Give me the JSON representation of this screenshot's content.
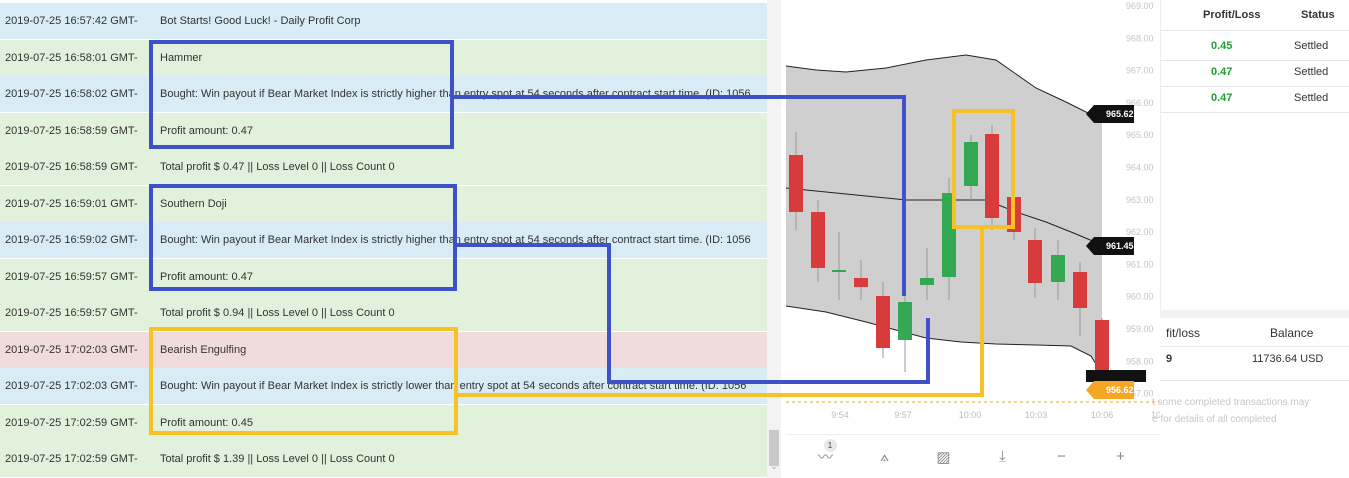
{
  "log": {
    "rows": [
      {
        "ts": "2019-07-25 16:57:42 GMT-",
        "msg": "Bot Starts! Good Luck! - Daily Profit Corp",
        "type": "info"
      },
      {
        "ts": "2019-07-25 16:58:01 GMT-",
        "msg": "Hammer",
        "type": "success"
      },
      {
        "ts": "2019-07-25 16:58:02 GMT-",
        "msg": "Bought: Win payout if Bear Market Index is strictly higher than entry spot at 54 seconds after contract start time. (ID: 1056",
        "type": "info"
      },
      {
        "ts": "2019-07-25 16:58:59 GMT-",
        "msg": "Profit amount: 0.47",
        "type": "success"
      },
      {
        "ts": "2019-07-25 16:58:59 GMT-",
        "msg": "Total profit $ 0.47 || Loss Level 0 || Loss Count 0",
        "type": "success"
      },
      {
        "ts": "2019-07-25 16:59:01 GMT-",
        "msg": "Southern Doji",
        "type": "success"
      },
      {
        "ts": "2019-07-25 16:59:02 GMT-",
        "msg": "Bought: Win payout if Bear Market Index is strictly higher than entry spot at 54 seconds after contract start time. (ID: 1056",
        "type": "info"
      },
      {
        "ts": "2019-07-25 16:59:57 GMT-",
        "msg": "Profit amount: 0.47",
        "type": "success"
      },
      {
        "ts": "2019-07-25 16:59:57 GMT-",
        "msg": "Total profit $ 0.94 || Loss Level 0 || Loss Count 0",
        "type": "success"
      },
      {
        "ts": "2019-07-25 17:02:03 GMT-",
        "msg": "Bearish Engulfing",
        "type": "error"
      },
      {
        "ts": "2019-07-25 17:02:03 GMT-",
        "msg": "Bought: Win payout if Bear Market Index is strictly lower than entry spot at 54 seconds after contract start time. (ID: 1056",
        "type": "info"
      },
      {
        "ts": "2019-07-25 17:02:59 GMT-",
        "msg": "Profit amount: 0.45",
        "type": "success"
      },
      {
        "ts": "2019-07-25 17:02:59 GMT-",
        "msg": "Total profit $ 1.39 || Loss Level 0 || Loss Count 0",
        "type": "success"
      }
    ]
  },
  "chart": {
    "price_ticks": [
      "969.00",
      "968.00",
      "967.00",
      "966.00",
      "965.00",
      "964.00",
      "963.00",
      "962.00",
      "961.00",
      "960.00",
      "959.00",
      "958.00",
      "957.00"
    ],
    "time_ticks": [
      "9:54",
      "9:57",
      "10:00",
      "10:03",
      "10:06"
    ],
    "badges": {
      "upper": "965.62",
      "middle": "961.45",
      "current": "956.62"
    },
    "partial_tick": "10",
    "colors": {
      "up": "#34a853",
      "down": "#d83b3b",
      "band": "#cfcfcf",
      "current": "#f5a623",
      "blue_annot": "#3f51c6",
      "yellow_annot": "#f6c226"
    },
    "toolbar": [
      {
        "name": "indicators-icon",
        "glyph": "〰",
        "badge": "1"
      },
      {
        "name": "drawing-tools-icon",
        "glyph": "⟑"
      },
      {
        "name": "chart-type-icon",
        "glyph": "▨"
      },
      {
        "name": "download-icon",
        "glyph": "⤓"
      },
      {
        "name": "zoom-out-icon",
        "glyph": "−"
      },
      {
        "name": "zoom-in-icon",
        "glyph": "+"
      }
    ]
  },
  "transactions": {
    "headers": {
      "profit_loss": "Profit/Loss",
      "status": "Status"
    },
    "rows": [
      {
        "pl": "0.45",
        "status": "Settled"
      },
      {
        "pl": "0.47",
        "status": "Settled"
      },
      {
        "pl": "0.47",
        "status": "Settled"
      }
    ]
  },
  "summary": {
    "profit_loss_header": "fit/loss",
    "balance_header": "Balance",
    "profit_loss_value": "9",
    "balance_value": "11736.64 USD",
    "note_line1": "t some completed transactions may",
    "note_line2": "e for details of all completed"
  }
}
